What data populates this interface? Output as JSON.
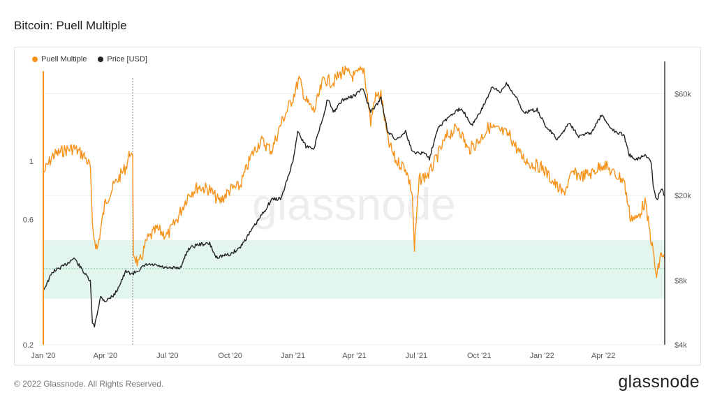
{
  "page": {
    "title": "Bitcoin: Puell Multiple",
    "copyright": "© 2022 Glassnode. All Rights Reserved.",
    "brand": "glassnode",
    "watermark": "glassnode"
  },
  "colors": {
    "puell": "#f7931a",
    "price": "#222222",
    "band": "#e3f6ee",
    "grid": "#ececec"
  },
  "chart_data": {
    "type": "line",
    "title": "Bitcoin: Puell Multiple",
    "x_ticks": [
      "Jan '20",
      "Apr '20",
      "Jul '20",
      "Oct '20",
      "Jan '21",
      "Apr '21",
      "Jul '21",
      "Oct '21",
      "Jan '22",
      "Apr '22"
    ],
    "x_range": [
      "2020-01-01",
      "2022-06-30"
    ],
    "left_axis": {
      "scale": "log",
      "ticks": [
        "0.2",
        "0.6",
        "1"
      ],
      "range": [
        0.2,
        2.4
      ]
    },
    "right_axis": {
      "scale": "log",
      "ticks": [
        "$4k",
        "$8k",
        "$20k",
        "$60k"
      ],
      "range": [
        4000,
        85000
      ]
    },
    "green_band": {
      "from": 0.3,
      "to": 0.5,
      "axis": "left"
    },
    "reference_line": {
      "value": 0.39,
      "axis": "left",
      "style": "dotted"
    },
    "halving_marker": "2020-05-11",
    "legend_position": "top-left",
    "grid": true,
    "series": [
      {
        "name": "Puell Multiple",
        "axis": "left",
        "points": [
          [
            "2020-01-01",
            0.9
          ],
          [
            "2020-01-15",
            1.05
          ],
          [
            "2020-02-01",
            1.1
          ],
          [
            "2020-02-15",
            1.12
          ],
          [
            "2020-03-01",
            1.05
          ],
          [
            "2020-03-10",
            0.95
          ],
          [
            "2020-03-13",
            0.55
          ],
          [
            "2020-03-20",
            0.46
          ],
          [
            "2020-04-01",
            0.7
          ],
          [
            "2020-04-15",
            0.82
          ],
          [
            "2020-05-01",
            0.95
          ],
          [
            "2020-05-08",
            1.1
          ],
          [
            "2020-05-11",
            1.0
          ],
          [
            "2020-05-12",
            0.45
          ],
          [
            "2020-05-20",
            0.4
          ],
          [
            "2020-06-01",
            0.5
          ],
          [
            "2020-06-15",
            0.55
          ],
          [
            "2020-07-01",
            0.52
          ],
          [
            "2020-07-15",
            0.6
          ],
          [
            "2020-08-01",
            0.75
          ],
          [
            "2020-08-15",
            0.8
          ],
          [
            "2020-09-01",
            0.78
          ],
          [
            "2020-09-15",
            0.7
          ],
          [
            "2020-10-01",
            0.78
          ],
          [
            "2020-10-15",
            0.8
          ],
          [
            "2020-11-01",
            1.05
          ],
          [
            "2020-11-15",
            1.2
          ],
          [
            "2020-12-01",
            1.1
          ],
          [
            "2020-12-15",
            1.4
          ],
          [
            "2021-01-01",
            1.75
          ],
          [
            "2021-01-10",
            2.05
          ],
          [
            "2021-01-20",
            1.7
          ],
          [
            "2021-02-01",
            1.55
          ],
          [
            "2021-02-15",
            2.05
          ],
          [
            "2021-03-01",
            2.0
          ],
          [
            "2021-03-15",
            2.2
          ],
          [
            "2021-04-01",
            2.1
          ],
          [
            "2021-04-15",
            2.25
          ],
          [
            "2021-04-25",
            1.4
          ],
          [
            "2021-05-01",
            1.75
          ],
          [
            "2021-05-10",
            1.8
          ],
          [
            "2021-05-20",
            1.2
          ],
          [
            "2021-06-01",
            1.0
          ],
          [
            "2021-06-15",
            0.95
          ],
          [
            "2021-06-25",
            0.75
          ],
          [
            "2021-06-28",
            0.46
          ],
          [
            "2021-07-05",
            0.85
          ],
          [
            "2021-07-20",
            0.9
          ],
          [
            "2021-08-01",
            1.05
          ],
          [
            "2021-08-15",
            1.25
          ],
          [
            "2021-09-01",
            1.35
          ],
          [
            "2021-09-15",
            1.1
          ],
          [
            "2021-10-01",
            1.2
          ],
          [
            "2021-10-15",
            1.35
          ],
          [
            "2021-11-01",
            1.3
          ],
          [
            "2021-11-15",
            1.25
          ],
          [
            "2021-12-01",
            1.05
          ],
          [
            "2021-12-15",
            0.98
          ],
          [
            "2022-01-01",
            0.95
          ],
          [
            "2022-01-15",
            0.85
          ],
          [
            "2022-02-01",
            0.75
          ],
          [
            "2022-02-15",
            0.9
          ],
          [
            "2022-03-01",
            0.88
          ],
          [
            "2022-03-15",
            0.9
          ],
          [
            "2022-04-01",
            0.98
          ],
          [
            "2022-04-15",
            0.9
          ],
          [
            "2022-05-01",
            0.85
          ],
          [
            "2022-05-10",
            0.62
          ],
          [
            "2022-05-20",
            0.6
          ],
          [
            "2022-06-01",
            0.7
          ],
          [
            "2022-06-13",
            0.45
          ],
          [
            "2022-06-18",
            0.36
          ],
          [
            "2022-06-25",
            0.45
          ],
          [
            "2022-06-30",
            0.42
          ]
        ]
      },
      {
        "name": "Price [USD]",
        "axis": "right",
        "points": [
          [
            "2020-01-01",
            7200
          ],
          [
            "2020-01-15",
            8800
          ],
          [
            "2020-02-01",
            9400
          ],
          [
            "2020-02-15",
            10200
          ],
          [
            "2020-03-01",
            8700
          ],
          [
            "2020-03-10",
            7900
          ],
          [
            "2020-03-13",
            5000
          ],
          [
            "2020-03-16",
            4900
          ],
          [
            "2020-03-25",
            6700
          ],
          [
            "2020-04-01",
            6400
          ],
          [
            "2020-04-15",
            6900
          ],
          [
            "2020-05-01",
            8800
          ],
          [
            "2020-05-11",
            8600
          ],
          [
            "2020-06-01",
            9500
          ],
          [
            "2020-06-15",
            9400
          ],
          [
            "2020-07-01",
            9100
          ],
          [
            "2020-07-20",
            9200
          ],
          [
            "2020-08-01",
            11300
          ],
          [
            "2020-08-15",
            11800
          ],
          [
            "2020-09-01",
            11900
          ],
          [
            "2020-09-10",
            10300
          ],
          [
            "2020-10-01",
            10600
          ],
          [
            "2020-10-15",
            11400
          ],
          [
            "2020-11-01",
            13700
          ],
          [
            "2020-11-15",
            16000
          ],
          [
            "2020-12-01",
            19200
          ],
          [
            "2020-12-15",
            19400
          ],
          [
            "2021-01-01",
            29000
          ],
          [
            "2021-01-08",
            40000
          ],
          [
            "2021-01-20",
            34000
          ],
          [
            "2021-02-01",
            33500
          ],
          [
            "2021-02-15",
            48000
          ],
          [
            "2021-02-21",
            57000
          ],
          [
            "2021-03-01",
            49000
          ],
          [
            "2021-03-15",
            56000
          ],
          [
            "2021-04-01",
            58800
          ],
          [
            "2021-04-14",
            63500
          ],
          [
            "2021-04-25",
            49000
          ],
          [
            "2021-05-10",
            57000
          ],
          [
            "2021-05-20",
            40000
          ],
          [
            "2021-06-01",
            36500
          ],
          [
            "2021-06-15",
            40000
          ],
          [
            "2021-06-25",
            32000
          ],
          [
            "2021-07-15",
            31500
          ],
          [
            "2021-07-20",
            29800
          ],
          [
            "2021-08-01",
            41500
          ],
          [
            "2021-08-15",
            46000
          ],
          [
            "2021-09-05",
            51500
          ],
          [
            "2021-09-20",
            42800
          ],
          [
            "2021-10-01",
            48000
          ],
          [
            "2021-10-20",
            64000
          ],
          [
            "2021-11-01",
            61000
          ],
          [
            "2021-11-10",
            67500
          ],
          [
            "2021-11-25",
            57000
          ],
          [
            "2021-12-05",
            49000
          ],
          [
            "2021-12-25",
            50500
          ],
          [
            "2022-01-05",
            43000
          ],
          [
            "2022-01-24",
            36500
          ],
          [
            "2022-02-10",
            44000
          ],
          [
            "2022-02-24",
            38000
          ],
          [
            "2022-03-15",
            39500
          ],
          [
            "2022-03-29",
            47500
          ],
          [
            "2022-04-15",
            40500
          ],
          [
            "2022-05-01",
            38500
          ],
          [
            "2022-05-09",
            31000
          ],
          [
            "2022-05-20",
            29500
          ],
          [
            "2022-06-01",
            31000
          ],
          [
            "2022-06-10",
            29000
          ],
          [
            "2022-06-13",
            22500
          ],
          [
            "2022-06-18",
            19000
          ],
          [
            "2022-06-25",
            21500
          ],
          [
            "2022-06-30",
            20000
          ]
        ]
      }
    ]
  }
}
